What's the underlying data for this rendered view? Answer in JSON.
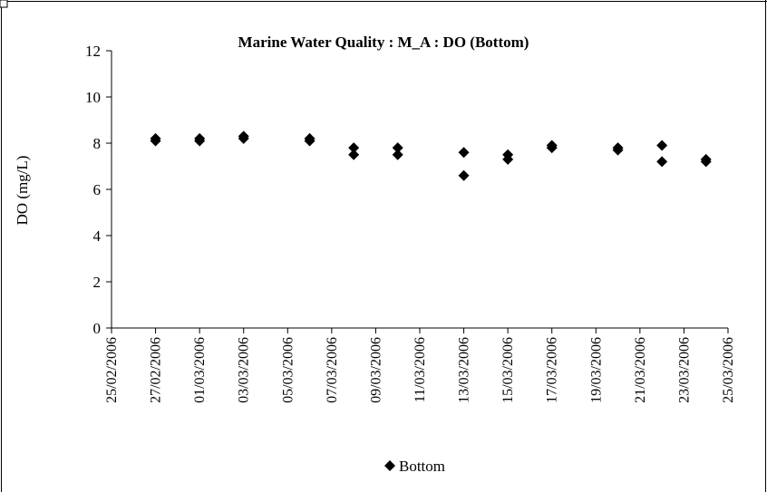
{
  "chart_data": {
    "type": "scatter",
    "title": "Marine Water Quality : M_A : DO (Bottom)",
    "xlabel": "",
    "ylabel": "DO (mg/L)",
    "x_type": "date",
    "xlim": [
      "2006-02-25",
      "2006-03-25"
    ],
    "ylim": [
      0,
      12
    ],
    "y_ticks": [
      0,
      2,
      4,
      6,
      8,
      10,
      12
    ],
    "x_ticks": [
      "25/02/2006",
      "27/02/2006",
      "01/03/2006",
      "03/03/2006",
      "05/03/2006",
      "07/03/2006",
      "09/03/2006",
      "11/03/2006",
      "13/03/2006",
      "15/03/2006",
      "17/03/2006",
      "19/03/2006",
      "21/03/2006",
      "23/03/2006",
      "25/03/2006"
    ],
    "grid": false,
    "legend": {
      "position": "bottom",
      "entries": [
        "Bottom"
      ]
    },
    "series": [
      {
        "name": "Bottom",
        "color": "#000000",
        "marker": "diamond",
        "points": [
          {
            "x": "2006-02-27",
            "y": 8.2
          },
          {
            "x": "2006-02-27",
            "y": 8.1
          },
          {
            "x": "2006-03-01",
            "y": 8.2
          },
          {
            "x": "2006-03-01",
            "y": 8.1
          },
          {
            "x": "2006-03-03",
            "y": 8.3
          },
          {
            "x": "2006-03-03",
            "y": 8.2
          },
          {
            "x": "2006-03-06",
            "y": 8.2
          },
          {
            "x": "2006-03-06",
            "y": 8.1
          },
          {
            "x": "2006-03-08",
            "y": 7.8
          },
          {
            "x": "2006-03-08",
            "y": 7.5
          },
          {
            "x": "2006-03-10",
            "y": 7.8
          },
          {
            "x": "2006-03-10",
            "y": 7.5
          },
          {
            "x": "2006-03-13",
            "y": 7.6
          },
          {
            "x": "2006-03-13",
            "y": 6.6
          },
          {
            "x": "2006-03-15",
            "y": 7.5
          },
          {
            "x": "2006-03-15",
            "y": 7.3
          },
          {
            "x": "2006-03-17",
            "y": 7.9
          },
          {
            "x": "2006-03-17",
            "y": 7.8
          },
          {
            "x": "2006-03-20",
            "y": 7.8
          },
          {
            "x": "2006-03-20",
            "y": 7.7
          },
          {
            "x": "2006-03-22",
            "y": 7.9
          },
          {
            "x": "2006-03-22",
            "y": 7.2
          },
          {
            "x": "2006-03-24",
            "y": 7.3
          },
          {
            "x": "2006-03-24",
            "y": 7.2
          }
        ]
      }
    ]
  }
}
